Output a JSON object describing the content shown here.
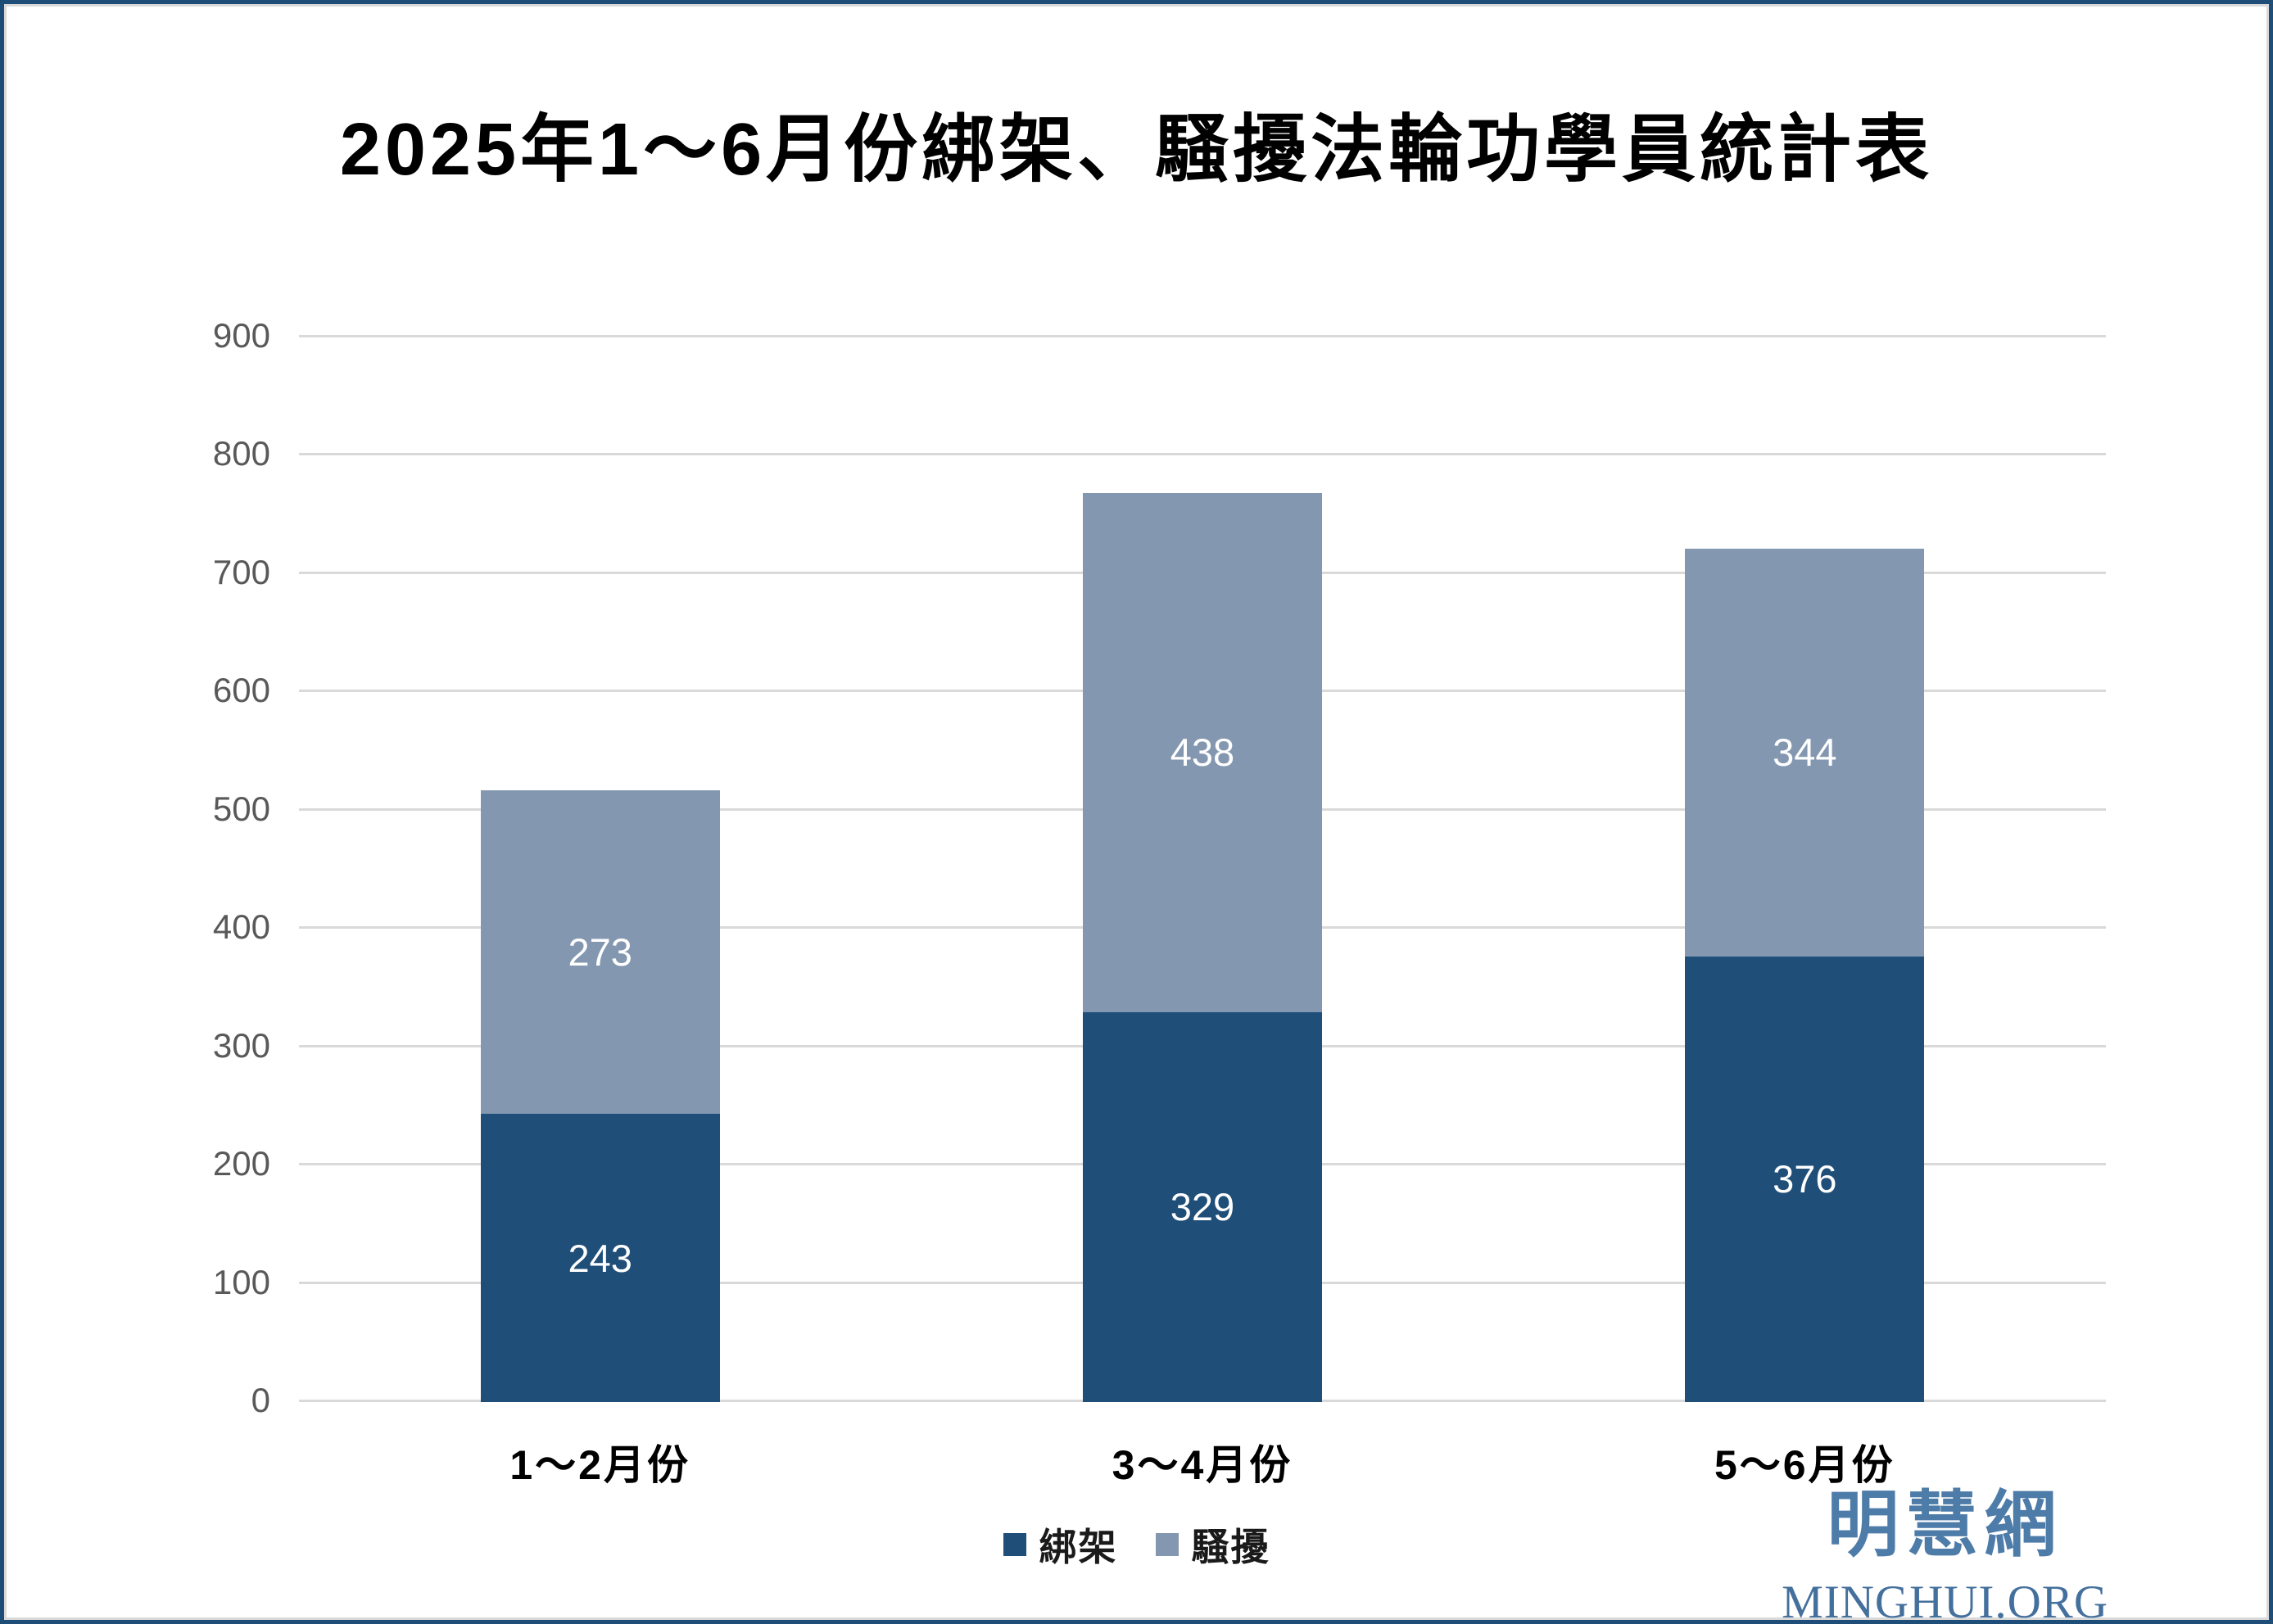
{
  "page": {
    "background": "#FFFFFF",
    "outer_border_color": "#1E4D78",
    "inner_border_color": "#D9D9D9"
  },
  "title": "2025年1～6月份綁架、騷擾法輪功學員統計表",
  "colors": {
    "series_kidnap": "#1F4E79",
    "series_harass": "#8497B0",
    "gridline": "#D9D9D9",
    "axis_text": "#595959",
    "data_label": "#FFFFFF",
    "category_text": "#000000",
    "logo_cjk": "#4E7CA9",
    "logo_latin": "#44709D"
  },
  "chart_data": {
    "type": "bar",
    "stacked": true,
    "title": "2025年1～6月份綁架、騷擾法輪功學員統計表",
    "categories": [
      "1～2月份",
      "3～4月份",
      "5～6月份"
    ],
    "series": [
      {
        "name": "綁架",
        "color": "#1F4E79",
        "values": [
          243,
          329,
          376
        ]
      },
      {
        "name": "騷擾",
        "color": "#8497B0",
        "values": [
          273,
          438,
          344
        ]
      }
    ],
    "xlabel": "",
    "ylabel": "",
    "ylim": [
      0,
      900
    ],
    "ytick_step": 100,
    "yticks": [
      0,
      100,
      200,
      300,
      400,
      500,
      600,
      700,
      800,
      900
    ],
    "grid": true,
    "legend_position": "bottom",
    "data_labels": "inside-center"
  },
  "legend": {
    "items": [
      {
        "label": "綁架",
        "color": "#1F4E79"
      },
      {
        "label": "騷擾",
        "color": "#8497B0"
      }
    ]
  },
  "logo": {
    "cjk": "明慧網",
    "latin": "MINGHUI.ORG"
  }
}
